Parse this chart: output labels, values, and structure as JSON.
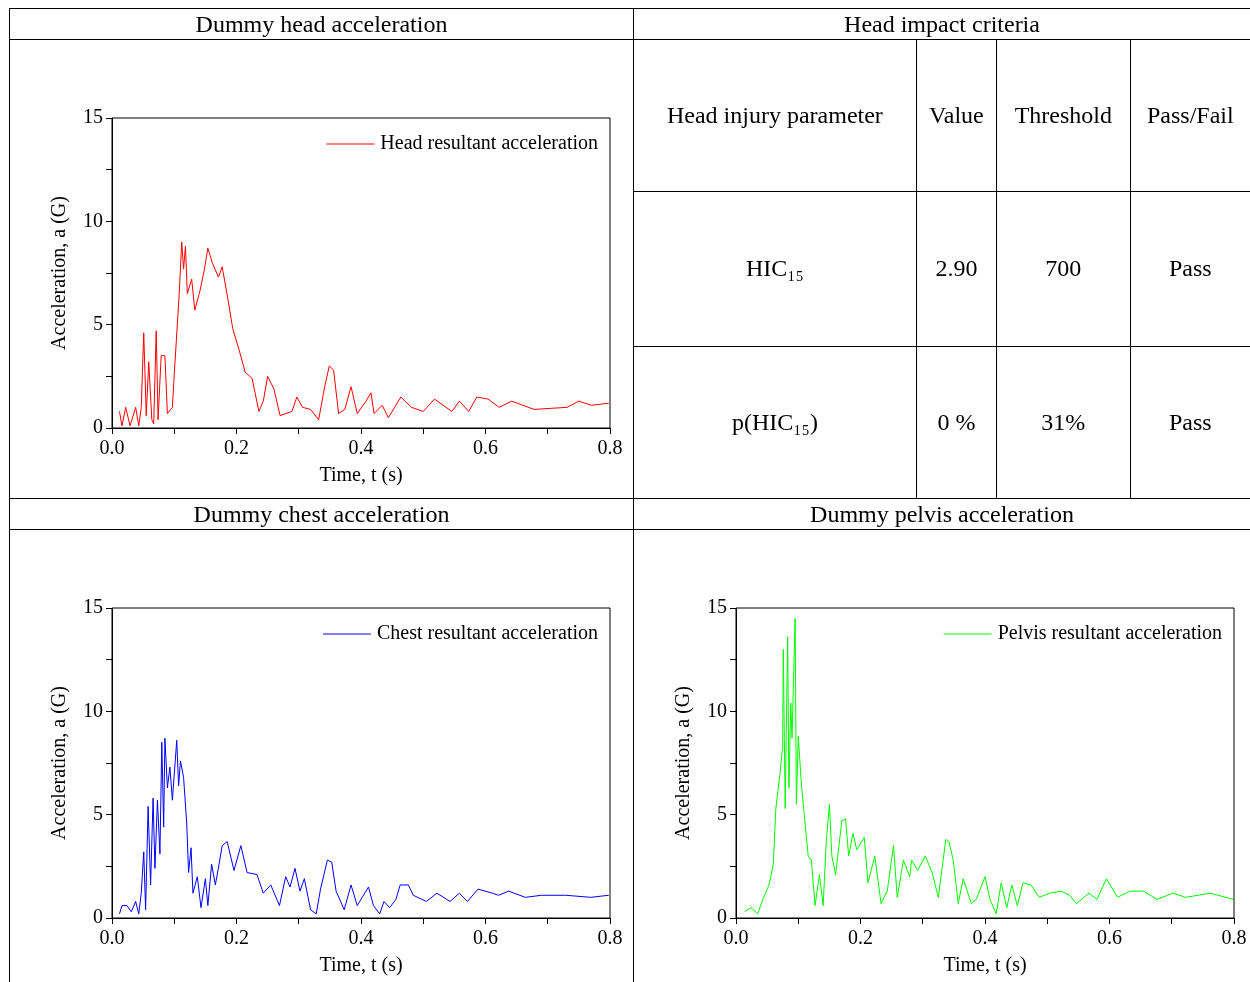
{
  "chart_data": [
    {
      "type": "line",
      "title": "Dummy head acceleration",
      "xlabel": "Time, t (s)",
      "ylabel": "Acceleration, a (G)",
      "legend": "top right",
      "grid": false,
      "xlim": [
        0,
        0.8
      ],
      "xticks": [
        {
          "value": 0,
          "label": "0.0"
        },
        {
          "value": 0.1,
          "label": null
        },
        0.2,
        {
          "value": 0.3,
          "label": null
        },
        0.4,
        {
          "value": 0.5,
          "label": null
        },
        0.6,
        {
          "value": 0.7,
          "label": null
        },
        0.8
      ],
      "ylim": [
        0,
        15
      ],
      "yticks": [
        0,
        {
          "value": 2.5,
          "label": null
        },
        5,
        {
          "value": 7.5,
          "label": null
        },
        10,
        {
          "value": 12.5,
          "label": null
        },
        15
      ],
      "series": [
        {
          "name": "Head resultant acceleration",
          "color": "#ff0000",
          "x": [
            0.012,
            0.016,
            0.022,
            0.029,
            0.038,
            0.043,
            0.047,
            0.051,
            0.055,
            0.059,
            0.064,
            0.067,
            0.071,
            0.074,
            0.079,
            0.085,
            0.089,
            0.097,
            0.1,
            0.108,
            0.112,
            0.115,
            0.118,
            0.121,
            0.128,
            0.133,
            0.141,
            0.148,
            0.154,
            0.161,
            0.171,
            0.177,
            0.187,
            0.194,
            0.204,
            0.214,
            0.225,
            0.236,
            0.243,
            0.25,
            0.26,
            0.27,
            0.289,
            0.297,
            0.306,
            0.319,
            0.332,
            0.341,
            0.349,
            0.356,
            0.364,
            0.374,
            0.384,
            0.394,
            0.408,
            0.416,
            0.421,
            0.434,
            0.444,
            0.454,
            0.464,
            0.481,
            0.5,
            0.518,
            0.546,
            0.558,
            0.573,
            0.586,
            0.604,
            0.622,
            0.642,
            0.678,
            0.731,
            0.75,
            0.77,
            0.798
          ],
          "values": [
            0.8,
            0.1,
            1.0,
            0.1,
            1.0,
            0.1,
            1.0,
            4.6,
            0.6,
            3.2,
            0.4,
            0.2,
            4.7,
            0.4,
            3.5,
            3.5,
            0.7,
            1.0,
            2.6,
            6.5,
            9.0,
            7.7,
            8.8,
            6.5,
            7.2,
            5.7,
            6.6,
            7.6,
            8.7,
            8.0,
            7.3,
            7.8,
            6.1,
            4.8,
            3.8,
            2.7,
            2.4,
            0.8,
            1.3,
            2.5,
            1.9,
            0.6,
            0.8,
            1.5,
            1.0,
            0.9,
            0.4,
            1.9,
            3.0,
            2.8,
            0.7,
            0.9,
            2.0,
            0.7,
            1.3,
            1.7,
            0.7,
            1.1,
            0.5,
            1.0,
            1.5,
            1.0,
            0.8,
            1.4,
            0.8,
            1.3,
            0.8,
            1.5,
            1.4,
            1.0,
            1.3,
            0.9,
            1.0,
            1.3,
            1.1,
            1.2
          ]
        }
      ]
    },
    {
      "type": "other",
      "title": "Head impact criteria",
      "annotations": [
        "Head injury parameter",
        "Value",
        "Threshold",
        "Pass/Fail",
        "HIC₁₅",
        "2.90",
        "700",
        "Pass",
        "p(HIC₁₅)",
        "0 %",
        "31%",
        "Pass"
      ]
    },
    {
      "type": "line",
      "title": "Dummy chest acceleration",
      "xlabel": "Time, t (s)",
      "ylabel": "Acceleration, a (G)",
      "legend": "top right",
      "grid": false,
      "xlim": [
        0,
        0.8
      ],
      "xticks": [
        {
          "value": 0,
          "label": "0.0"
        },
        {
          "value": 0.1,
          "label": null
        },
        0.2,
        {
          "value": 0.3,
          "label": null
        },
        0.4,
        {
          "value": 0.5,
          "label": null
        },
        0.6,
        {
          "value": 0.7,
          "label": null
        },
        0.8
      ],
      "ylim": [
        0,
        15
      ],
      "yticks": [
        0,
        {
          "value": 2.5,
          "label": null
        },
        5,
        {
          "value": 7.5,
          "label": null
        },
        10,
        {
          "value": 12.5,
          "label": null
        },
        15
      ],
      "series": [
        {
          "name": "Chest resultant acceleration",
          "color": "#0000ff",
          "x": [
            0.012,
            0.016,
            0.024,
            0.031,
            0.038,
            0.043,
            0.047,
            0.051,
            0.054,
            0.058,
            0.062,
            0.066,
            0.069,
            0.073,
            0.077,
            0.08,
            0.083,
            0.085,
            0.089,
            0.093,
            0.097,
            0.104,
            0.107,
            0.11,
            0.115,
            0.12,
            0.123,
            0.127,
            0.13,
            0.137,
            0.143,
            0.15,
            0.154,
            0.16,
            0.166,
            0.172,
            0.177,
            0.185,
            0.196,
            0.207,
            0.217,
            0.233,
            0.243,
            0.255,
            0.269,
            0.279,
            0.286,
            0.294,
            0.302,
            0.309,
            0.319,
            0.328,
            0.335,
            0.346,
            0.353,
            0.36,
            0.373,
            0.384,
            0.394,
            0.412,
            0.42,
            0.43,
            0.437,
            0.446,
            0.456,
            0.463,
            0.476,
            0.484,
            0.505,
            0.522,
            0.543,
            0.558,
            0.571,
            0.588,
            0.611,
            0.621,
            0.637,
            0.664,
            0.69,
            0.729,
            0.769,
            0.798
          ],
          "values": [
            0.2,
            0.6,
            0.6,
            0.3,
            0.8,
            0.2,
            1.2,
            3.2,
            0.4,
            5.4,
            1.6,
            5.8,
            2.4,
            5.7,
            3.1,
            8.5,
            4.4,
            8.7,
            6.3,
            7.3,
            5.7,
            8.6,
            6.4,
            7.6,
            6.8,
            4.6,
            2.2,
            3.4,
            1.2,
            2.0,
            0.5,
            1.9,
            0.6,
            2.6,
            1.6,
            2.6,
            3.5,
            3.7,
            2.3,
            3.5,
            2.2,
            2.1,
            1.2,
            1.6,
            0.6,
            2.0,
            1.5,
            2.4,
            1.3,
            1.9,
            0.4,
            0.2,
            1.4,
            2.8,
            2.7,
            1.3,
            0.4,
            1.6,
            0.6,
            1.5,
            0.6,
            0.2,
            0.8,
            0.5,
            0.9,
            1.6,
            1.6,
            1.1,
            0.8,
            1.2,
            0.8,
            1.2,
            0.8,
            1.4,
            1.2,
            1.1,
            1.3,
            1.0,
            1.1,
            1.1,
            1.0,
            1.1
          ]
        }
      ]
    },
    {
      "type": "line",
      "title": "Dummy pelvis acceleration",
      "xlabel": "Time, t (s)",
      "ylabel": "Acceleration, a (G)",
      "legend": "top right",
      "grid": false,
      "xlim": [
        0,
        0.8
      ],
      "xticks": [
        {
          "value": 0,
          "label": "0.0"
        },
        {
          "value": 0.1,
          "label": null
        },
        0.2,
        {
          "value": 0.3,
          "label": null
        },
        0.4,
        {
          "value": 0.5,
          "label": null
        },
        0.6,
        {
          "value": 0.7,
          "label": null
        },
        0.8
      ],
      "ylim": [
        0,
        15
      ],
      "yticks": [
        0,
        {
          "value": 2.5,
          "label": null
        },
        5,
        {
          "value": 7.5,
          "label": null
        },
        10,
        {
          "value": 12.5,
          "label": null
        },
        15
      ],
      "series": [
        {
          "name": "Pelvis resultant acceleration",
          "color": "#00ff00",
          "x": [
            0.014,
            0.024,
            0.035,
            0.043,
            0.053,
            0.06,
            0.064,
            0.07,
            0.075,
            0.076,
            0.079,
            0.083,
            0.085,
            0.088,
            0.09,
            0.095,
            0.097,
            0.1,
            0.105,
            0.109,
            0.116,
            0.121,
            0.127,
            0.134,
            0.14,
            0.145,
            0.15,
            0.154,
            0.16,
            0.17,
            0.176,
            0.181,
            0.188,
            0.194,
            0.206,
            0.212,
            0.223,
            0.233,
            0.243,
            0.253,
            0.259,
            0.269,
            0.279,
            0.282,
            0.292,
            0.304,
            0.315,
            0.325,
            0.337,
            0.342,
            0.349,
            0.357,
            0.365,
            0.378,
            0.386,
            0.4,
            0.408,
            0.418,
            0.426,
            0.435,
            0.443,
            0.452,
            0.461,
            0.474,
            0.487,
            0.504,
            0.522,
            0.536,
            0.547,
            0.567,
            0.58,
            0.595,
            0.613,
            0.633,
            0.655,
            0.676,
            0.702,
            0.722,
            0.762,
            0.799
          ],
          "values": [
            0.3,
            0.5,
            0.2,
            0.9,
            1.6,
            2.6,
            5.3,
            6.8,
            8.3,
            13.0,
            5.3,
            13.6,
            6.3,
            10.4,
            8.7,
            14.5,
            5.5,
            8.8,
            6.5,
            5.2,
            3.0,
            2.8,
            0.6,
            2.1,
            0.6,
            3.7,
            5.5,
            3.0,
            2.1,
            4.7,
            4.8,
            3.0,
            4.1,
            3.3,
            3.9,
            1.7,
            3.0,
            0.7,
            1.3,
            3.5,
            1.0,
            2.8,
            2.0,
            2.8,
            2.3,
            3.0,
            2.2,
            1.0,
            3.8,
            3.7,
            2.8,
            0.7,
            1.9,
            0.7,
            0.9,
            2.0,
            0.9,
            0.2,
            1.7,
            0.5,
            1.6,
            0.6,
            1.7,
            1.6,
            1.0,
            1.2,
            1.3,
            1.1,
            0.7,
            1.2,
            0.9,
            1.9,
            1.0,
            1.3,
            1.3,
            0.9,
            1.2,
            1.0,
            1.2,
            0.9
          ]
        }
      ]
    }
  ]
}
